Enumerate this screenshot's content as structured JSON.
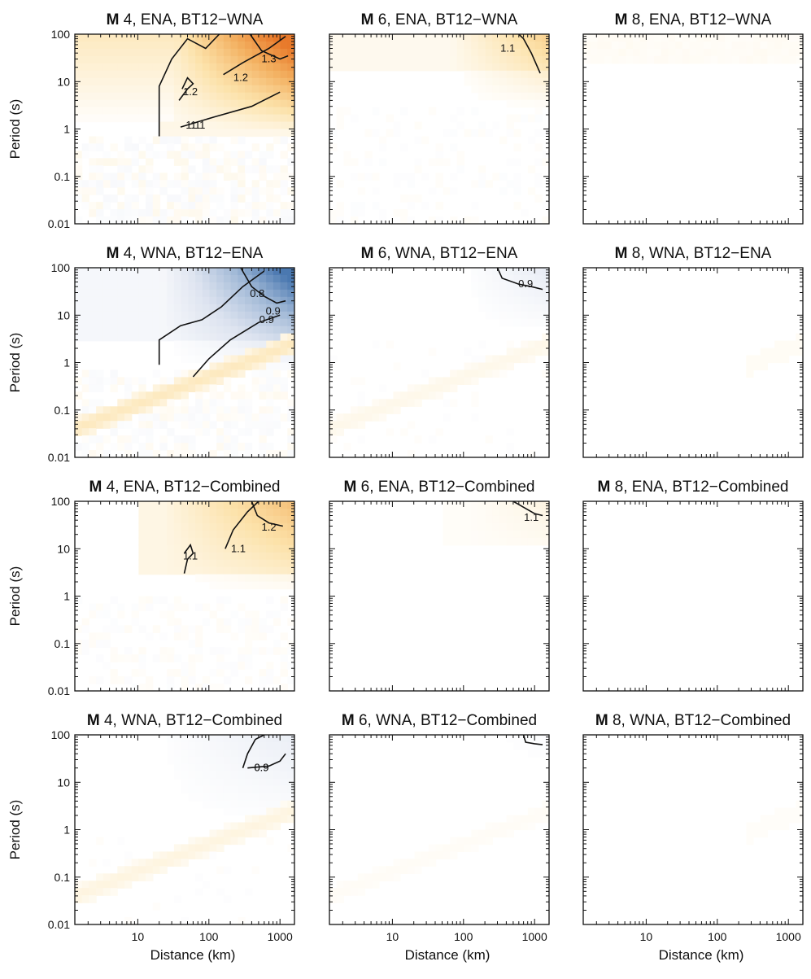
{
  "chart_data": {
    "type": "heatmap",
    "layout": {
      "rows": 4,
      "cols": 3
    },
    "x_axis": {
      "label": "Distance (km)",
      "scale": "log",
      "range": [
        1.3,
        1600
      ],
      "tick_values": [
        10,
        100,
        1000
      ],
      "tick_labels": [
        "10",
        "100",
        "1000"
      ]
    },
    "y_axis": {
      "label": "Period (s)",
      "scale": "log",
      "range": [
        0.01,
        100
      ],
      "tick_values": [
        0.01,
        0.1,
        1,
        10,
        100
      ],
      "tick_labels": [
        "0.01",
        "0.1",
        "1",
        "10",
        "100"
      ]
    },
    "colormap": {
      "low": "#4a78b0",
      "neutral": "#ffffff",
      "high": "#e8792a",
      "center_value": 1.0
    },
    "panels": [
      {
        "title_bold": "M",
        "title": " 4, ENA, BT12−WNA",
        "preset": "ena_m4_wna",
        "strength": 1.0,
        "contours": [
          {
            "level": "1.1",
            "points": [
              [
                20,
                0.7
              ],
              [
                20,
                8
              ],
              [
                30,
                30
              ],
              [
                50,
                80
              ],
              [
                90,
                50
              ],
              [
                140,
                100
              ]
            ],
            "label_at": [
              70,
              1.2
            ]
          },
          {
            "level": "1.2",
            "points": [
              [
                38,
                4
              ],
              [
                50,
                7
              ],
              [
                60,
                9
              ],
              [
                50,
                12
              ],
              [
                42,
                7
              ]
            ],
            "label_at": [
              55,
              6
            ]
          },
          {
            "level": "1.1",
            "points": [
              [
                40,
                1.1
              ],
              [
                120,
                1.8
              ],
              [
                400,
                3
              ],
              [
                1000,
                6
              ]
            ],
            "label_at": [
              60,
              1.2
            ]
          },
          {
            "level": "1.2",
            "points": [
              [
                160,
                14
              ],
              [
                300,
                25
              ],
              [
                700,
                50
              ],
              [
                1200,
                90
              ]
            ],
            "label_at": [
              280,
              12
            ]
          },
          {
            "level": "1.3",
            "points": [
              [
                380,
                100
              ],
              [
                550,
                45
              ],
              [
                1000,
                30
              ],
              [
                1300,
                35
              ]
            ],
            "label_at": [
              700,
              30
            ]
          }
        ]
      },
      {
        "title_bold": "M",
        "title": " 6, ENA, BT12−WNA",
        "preset": "ena_m6_wna",
        "strength": 0.55,
        "contours": [
          {
            "level": "1.1",
            "points": [
              [
                600,
                100
              ],
              [
                700,
                80
              ],
              [
                900,
                40
              ],
              [
                1200,
                15
              ]
            ],
            "label_at": [
              420,
              50
            ]
          }
        ]
      },
      {
        "title_bold": "M",
        "title": " 8, ENA, BT12−WNA",
        "preset": "ena_m8_wna",
        "strength": 0.25,
        "contours": []
      },
      {
        "title_bold": "M",
        "title": " 4, WNA, BT12−ENA",
        "preset": "wna_m4_ena",
        "strength": 1.0,
        "contours": [
          {
            "level": "0.9",
            "points": [
              [
                20,
                0.9
              ],
              [
                20,
                3
              ],
              [
                40,
                6
              ],
              [
                80,
                8
              ],
              [
                150,
                15
              ],
              [
                300,
                40
              ],
              [
                600,
                85
              ]
            ],
            "label_at": [
              800,
              12
            ]
          },
          {
            "level": "0.9",
            "points": [
              [
                60,
                0.5
              ],
              [
                100,
                1.2
              ],
              [
                200,
                3
              ],
              [
                500,
                7
              ],
              [
                1000,
                10
              ]
            ],
            "label_at": [
              650,
              8
            ]
          },
          {
            "level": "0.8",
            "points": [
              [
                280,
                100
              ],
              [
                400,
                40
              ],
              [
                600,
                25
              ],
              [
                900,
                18
              ],
              [
                1200,
                20
              ]
            ],
            "label_at": [
              480,
              28
            ]
          }
        ]
      },
      {
        "title_bold": "M",
        "title": " 6, WNA, BT12−ENA",
        "preset": "wna_m6_ena",
        "strength": 0.55,
        "contours": [
          {
            "level": "0.9",
            "points": [
              [
                300,
                100
              ],
              [
                350,
                60
              ],
              [
                600,
                45
              ],
              [
                900,
                40
              ],
              [
                1300,
                35
              ]
            ],
            "label_at": [
              750,
              45
            ]
          }
        ]
      },
      {
        "title_bold": "M",
        "title": " 8, WNA, BT12−ENA",
        "preset": "wna_m8_ena",
        "strength": 0.25,
        "contours": []
      },
      {
        "title_bold": "M",
        "title": " 4, ENA, BT12−Combined",
        "preset": "ena_m4_comb",
        "strength": 0.7,
        "contours": [
          {
            "level": "1.1",
            "points": [
              [
                170,
                10
              ],
              [
                220,
                25
              ],
              [
                350,
                60
              ],
              [
                500,
                100
              ]
            ],
            "label_at": [
              260,
              10
            ]
          },
          {
            "level": "1.2",
            "points": [
              [
                400,
                100
              ],
              [
                480,
                50
              ],
              [
                700,
                35
              ],
              [
                1100,
                30
              ]
            ],
            "label_at": [
              700,
              28
            ]
          },
          {
            "level": "1.1",
            "points": [
              [
                45,
                3
              ],
              [
                50,
                6
              ],
              [
                60,
                8
              ],
              [
                55,
                12
              ],
              [
                45,
                8
              ]
            ],
            "label_at": [
              55,
              7
            ]
          }
        ]
      },
      {
        "title_bold": "M",
        "title": " 6, ENA, BT12−Combined",
        "preset": "ena_m6_comb",
        "strength": 0.35,
        "contours": [
          {
            "level": "1.1",
            "points": [
              [
                500,
                100
              ],
              [
                700,
                75
              ],
              [
                1000,
                55
              ],
              [
                1300,
                50
              ]
            ],
            "label_at": [
              900,
              45
            ]
          }
        ]
      },
      {
        "title_bold": "M",
        "title": " 8, ENA, BT12−Combined",
        "preset": "ena_m8_comb",
        "strength": 0.15,
        "contours": []
      },
      {
        "title_bold": "M",
        "title": " 4, WNA, BT12−Combined",
        "preset": "wna_m4_comb",
        "strength": 0.55,
        "contours": [
          {
            "level": "0.9",
            "points": [
              [
                300,
                20
              ],
              [
                350,
                40
              ],
              [
                450,
                80
              ],
              [
                600,
                100
              ]
            ],
            "label_at": [
              550,
              20
            ]
          },
          {
            "level": "0.9",
            "points": [
              [
                350,
                20
              ],
              [
                700,
                22
              ],
              [
                1000,
                28
              ],
              [
                1200,
                40
              ]
            ],
            "label_at": [
              550,
              20
            ]
          }
        ]
      },
      {
        "title_bold": "M",
        "title": " 6, WNA, BT12−Combined",
        "preset": "wna_m6_comb",
        "strength": 0.3,
        "contours": [
          {
            "level": "",
            "points": [
              [
                700,
                100
              ],
              [
                750,
                70
              ],
              [
                1000,
                65
              ],
              [
                1300,
                62
              ]
            ],
            "label_at": [
              900,
              60
            ]
          }
        ]
      },
      {
        "title_bold": "M",
        "title": " 8, WNA, BT12−Combined",
        "preset": "wna_m8_comb",
        "strength": 0.2,
        "contours": []
      }
    ]
  }
}
